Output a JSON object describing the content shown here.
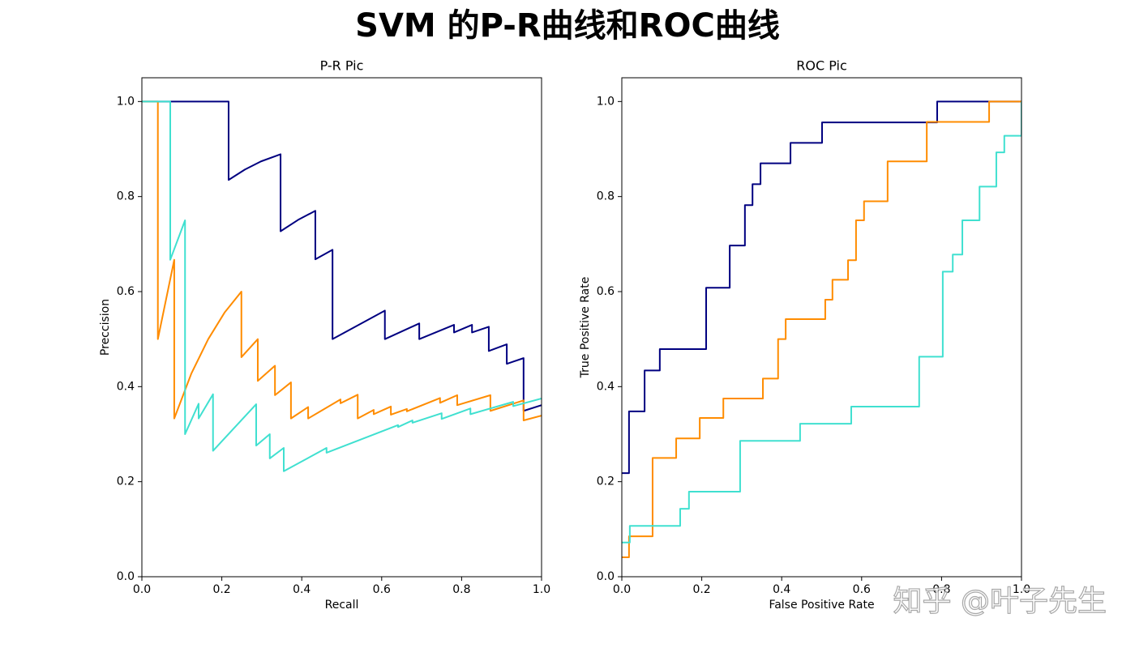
{
  "title": "SVM 的P-R曲线和ROC曲线",
  "watermark": "知乎 @叶子先生",
  "chart_data": [
    {
      "type": "line",
      "title": "P-R Pic",
      "xlabel": "Recall",
      "ylabel": "Preccision",
      "xlim": [
        0,
        1
      ],
      "ylim": [
        0,
        1.05
      ],
      "xticks": [
        {
          "value": 0,
          "label": "0.0"
        },
        0.2,
        0.4,
        0.6,
        0.8,
        {
          "value": 1,
          "label": "1.0"
        }
      ],
      "yticks": [
        {
          "value": 0,
          "label": "0.0"
        },
        0.2,
        0.4,
        0.6,
        0.8,
        {
          "value": 1,
          "label": "1.0"
        }
      ],
      "grid": false,
      "series": [
        {
          "color": "#000080",
          "x": [
            0,
            0.217,
            0.217,
            0.258,
            0.298,
            0.347,
            0.347,
            0.391,
            0.434,
            0.434,
            0.477,
            0.477,
            0.608,
            0.608,
            0.694,
            0.694,
            0.781,
            0.781,
            0.826,
            0.826,
            0.868,
            0.868,
            0.913,
            0.913,
            0.955,
            0.955,
            1.0
          ],
          "values": [
            1.0,
            1.0,
            0.835,
            0.857,
            0.874,
            0.889,
            0.727,
            0.751,
            0.77,
            0.668,
            0.688,
            0.5,
            0.56,
            0.5,
            0.533,
            0.5,
            0.53,
            0.514,
            0.53,
            0.514,
            0.526,
            0.475,
            0.489,
            0.448,
            0.46,
            0.349,
            0.361
          ]
        },
        {
          "color": "#ff8c00",
          "x": [
            0,
            0.04,
            0.04,
            0.081,
            0.081,
            0.124,
            0.166,
            0.207,
            0.249,
            0.249,
            0.29,
            0.29,
            0.333,
            0.333,
            0.373,
            0.373,
            0.416,
            0.416,
            0.497,
            0.497,
            0.54,
            0.54,
            0.58,
            0.58,
            0.623,
            0.623,
            0.663,
            0.663,
            0.746,
            0.746,
            0.789,
            0.789,
            0.872,
            0.872,
            0.955,
            0.955,
            1.0
          ],
          "values": [
            1.0,
            1.0,
            0.5,
            0.667,
            0.333,
            0.428,
            0.5,
            0.556,
            0.6,
            0.462,
            0.5,
            0.412,
            0.444,
            0.382,
            0.409,
            0.333,
            0.357,
            0.333,
            0.373,
            0.365,
            0.383,
            0.333,
            0.351,
            0.342,
            0.358,
            0.341,
            0.353,
            0.348,
            0.376,
            0.366,
            0.382,
            0.361,
            0.382,
            0.349,
            0.371,
            0.329,
            0.339
          ]
        },
        {
          "color": "#40e0d0",
          "x": [
            0,
            0.071,
            0.071,
            0.108,
            0.108,
            0.142,
            0.142,
            0.178,
            0.178,
            0.286,
            0.286,
            0.32,
            0.32,
            0.355,
            0.355,
            0.462,
            0.462,
            0.641,
            0.641,
            0.677,
            0.677,
            0.75,
            0.75,
            0.822,
            0.822,
            0.929,
            0.929,
            1.0
          ],
          "values": [
            1.0,
            1.0,
            0.667,
            0.75,
            0.3,
            0.364,
            0.333,
            0.384,
            0.265,
            0.363,
            0.276,
            0.3,
            0.249,
            0.271,
            0.222,
            0.271,
            0.261,
            0.319,
            0.315,
            0.329,
            0.324,
            0.344,
            0.332,
            0.354,
            0.342,
            0.368,
            0.359,
            0.375
          ]
        }
      ]
    },
    {
      "type": "line",
      "title": "ROC Pic",
      "xlabel": "False Positive Rate",
      "ylabel": "True Positive Rate",
      "xlim": [
        0,
        1
      ],
      "ylim": [
        0,
        1.05
      ],
      "xticks": [
        {
          "value": 0,
          "label": "0.0"
        },
        0.2,
        0.4,
        0.6,
        0.8,
        {
          "value": 1,
          "label": "1.0"
        }
      ],
      "yticks": [
        {
          "value": 0,
          "label": "0.0"
        },
        0.2,
        0.4,
        0.6,
        0.8,
        {
          "value": 1,
          "label": "1.0"
        }
      ],
      "grid": false,
      "series": [
        {
          "color": "#000080",
          "x": [
            0,
            0.018,
            0.018,
            0.057,
            0.057,
            0.095,
            0.095,
            0.211,
            0.211,
            0.27,
            0.27,
            0.308,
            0.308,
            0.327,
            0.327,
            0.347,
            0.347,
            0.422,
            0.422,
            0.501,
            0.501,
            0.789,
            0.789,
            0.919,
            1.0
          ],
          "values": [
            0.218,
            0.218,
            0.348,
            0.348,
            0.434,
            0.434,
            0.479,
            0.479,
            0.608,
            0.608,
            0.697,
            0.697,
            0.782,
            0.782,
            0.826,
            0.826,
            0.87,
            0.87,
            0.913,
            0.913,
            0.956,
            0.956,
            1.0,
            1.0,
            1.0
          ]
        },
        {
          "color": "#ff8c00",
          "x": [
            0,
            0.018,
            0.018,
            0.077,
            0.077,
            0.136,
            0.136,
            0.195,
            0.195,
            0.254,
            0.254,
            0.353,
            0.353,
            0.391,
            0.391,
            0.41,
            0.41,
            0.509,
            0.509,
            0.527,
            0.527,
            0.566,
            0.566,
            0.586,
            0.586,
            0.606,
            0.606,
            0.665,
            0.665,
            0.763,
            0.763,
            0.919,
            0.919,
            1.0
          ],
          "values": [
            0.041,
            0.041,
            0.085,
            0.085,
            0.25,
            0.25,
            0.291,
            0.291,
            0.334,
            0.334,
            0.375,
            0.375,
            0.417,
            0.417,
            0.5,
            0.5,
            0.542,
            0.542,
            0.583,
            0.583,
            0.625,
            0.625,
            0.666,
            0.666,
            0.75,
            0.75,
            0.79,
            0.79,
            0.874,
            0.874,
            0.957,
            0.957,
            1.0,
            1.0
          ]
        },
        {
          "color": "#40e0d0",
          "x": [
            0,
            0.02,
            0.02,
            0.146,
            0.146,
            0.168,
            0.168,
            0.296,
            0.296,
            0.446,
            0.446,
            0.574,
            0.574,
            0.744,
            0.744,
            0.803,
            0.803,
            0.828,
            0.828,
            0.852,
            0.852,
            0.895,
            0.895,
            0.937,
            0.937,
            0.957,
            0.957,
            1.0,
            1.0
          ],
          "values": [
            0.072,
            0.072,
            0.107,
            0.107,
            0.143,
            0.143,
            0.179,
            0.179,
            0.286,
            0.286,
            0.322,
            0.322,
            0.358,
            0.358,
            0.463,
            0.463,
            0.642,
            0.642,
            0.678,
            0.678,
            0.75,
            0.75,
            0.821,
            0.821,
            0.893,
            0.893,
            0.928,
            0.928,
            1.0
          ]
        }
      ]
    }
  ]
}
